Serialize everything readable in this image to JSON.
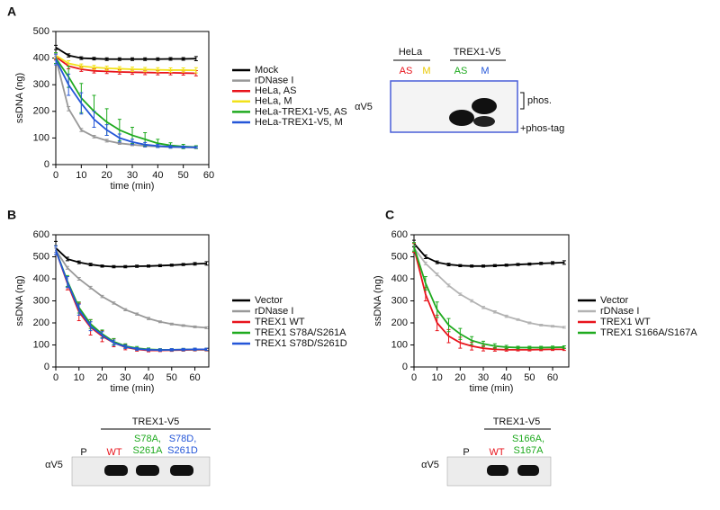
{
  "chart_data": [
    {
      "type": "line",
      "panel": "A",
      "xlabel": "time (min)",
      "ylabel": "ssDNA (ng)",
      "x": [
        0,
        5,
        10,
        15,
        20,
        25,
        30,
        35,
        40,
        45,
        50,
        55
      ],
      "xlim": [
        0,
        60
      ],
      "xticks": [
        0,
        10,
        20,
        30,
        40,
        50,
        60
      ],
      "ylim": [
        0,
        500
      ],
      "yticks": [
        0,
        100,
        200,
        300,
        400,
        500
      ],
      "legend": "right",
      "series": [
        {
          "name": "Mock",
          "color": "#000000",
          "values": [
            440,
            410,
            400,
            398,
            396,
            396,
            396,
            396,
            396,
            397,
            397,
            398
          ],
          "errors": [
            8,
            6,
            5,
            5,
            5,
            5,
            5,
            5,
            5,
            5,
            5,
            8
          ]
        },
        {
          "name": "rDNase I",
          "color": "#999999",
          "values": [
            400,
            210,
            130,
            105,
            90,
            80,
            75,
            70,
            68,
            66,
            65,
            64
          ],
          "errors": [
            8,
            8,
            6,
            5,
            5,
            4,
            4,
            4,
            4,
            4,
            4,
            4
          ]
        },
        {
          "name": "HeLa, AS",
          "color": "#e8141c",
          "values": [
            405,
            370,
            358,
            352,
            350,
            348,
            347,
            346,
            345,
            345,
            344,
            343
          ],
          "errors": [
            10,
            10,
            8,
            8,
            8,
            8,
            8,
            8,
            8,
            8,
            8,
            10
          ]
        },
        {
          "name": "HeLa, M",
          "color": "#f2e21b",
          "values": [
            410,
            380,
            370,
            365,
            362,
            360,
            358,
            357,
            356,
            355,
            355,
            354
          ],
          "errors": [
            10,
            10,
            8,
            8,
            8,
            8,
            8,
            8,
            8,
            8,
            8,
            10
          ]
        },
        {
          "name": "HeLa-TREX1-V5, AS",
          "color": "#1faa1f",
          "values": [
            400,
            330,
            250,
            200,
            160,
            130,
            110,
            95,
            80,
            72,
            68,
            66
          ],
          "errors": [
            20,
            40,
            55,
            60,
            50,
            40,
            30,
            25,
            15,
            10,
            8,
            5
          ]
        },
        {
          "name": "HeLa-TREX1-V5, M",
          "color": "#2456d8",
          "values": [
            395,
            300,
            230,
            170,
            130,
            100,
            85,
            75,
            70,
            67,
            66,
            65
          ],
          "errors": [
            20,
            40,
            40,
            30,
            20,
            15,
            10,
            8,
            6,
            5,
            4,
            3
          ]
        }
      ]
    },
    {
      "type": "line",
      "panel": "B",
      "xlabel": "time (min)",
      "ylabel": "ssDNA (ng)",
      "x": [
        0,
        5,
        10,
        15,
        20,
        25,
        30,
        35,
        40,
        45,
        50,
        55,
        60,
        65
      ],
      "xlim": [
        0,
        66
      ],
      "xticks": [
        0,
        10,
        20,
        30,
        40,
        50,
        60
      ],
      "ylim": [
        0,
        600
      ],
      "yticks": [
        0,
        100,
        200,
        300,
        400,
        500,
        600
      ],
      "legend": "right",
      "series": [
        {
          "name": "Vector",
          "color": "#000000",
          "values": [
            540,
            490,
            475,
            465,
            458,
            455,
            455,
            457,
            458,
            460,
            462,
            465,
            468,
            470
          ],
          "errors": [
            30,
            8,
            6,
            6,
            5,
            5,
            5,
            5,
            5,
            5,
            5,
            5,
            6,
            8
          ]
        },
        {
          "name": "rDNase I",
          "color": "#999999",
          "values": [
            530,
            450,
            400,
            360,
            320,
            290,
            260,
            240,
            220,
            205,
            195,
            188,
            182,
            178
          ],
          "errors": [
            10,
            6,
            6,
            6,
            5,
            5,
            5,
            5,
            5,
            4,
            4,
            4,
            4,
            4
          ]
        },
        {
          "name": "TREX1 WT",
          "color": "#e8141c",
          "values": [
            530,
            380,
            250,
            180,
            140,
            110,
            90,
            80,
            75,
            75,
            76,
            77,
            78,
            78
          ],
          "errors": [
            20,
            30,
            40,
            35,
            25,
            18,
            12,
            8,
            6,
            5,
            5,
            5,
            5,
            5
          ]
        },
        {
          "name": "TREX1 S78A/S261A",
          "color": "#1faa1f",
          "values": [
            530,
            390,
            270,
            195,
            150,
            115,
            95,
            85,
            80,
            78,
            78,
            79,
            80,
            80
          ],
          "errors": [
            20,
            25,
            25,
            20,
            18,
            14,
            10,
            8,
            6,
            5,
            5,
            5,
            5,
            5
          ]
        },
        {
          "name": "TREX1 S78D/S261D",
          "color": "#2456d8",
          "values": [
            530,
            385,
            260,
            185,
            145,
            110,
            92,
            82,
            78,
            77,
            78,
            79,
            80,
            80
          ],
          "errors": [
            20,
            25,
            25,
            20,
            15,
            12,
            8,
            6,
            5,
            5,
            5,
            5,
            5,
            5
          ]
        }
      ]
    },
    {
      "type": "line",
      "panel": "C",
      "xlabel": "time (min)",
      "ylabel": "ssDNA (ng)",
      "x": [
        0,
        5,
        10,
        15,
        20,
        25,
        30,
        35,
        40,
        45,
        50,
        55,
        60,
        65
      ],
      "xlim": [
        0,
        67
      ],
      "xticks": [
        0,
        10,
        20,
        30,
        40,
        50,
        60
      ],
      "ylim": [
        0,
        600
      ],
      "yticks": [
        0,
        100,
        200,
        300,
        400,
        500,
        600
      ],
      "legend": "right",
      "series": [
        {
          "name": "Vector",
          "color": "#000000",
          "values": [
            560,
            500,
            475,
            465,
            460,
            458,
            458,
            460,
            462,
            465,
            467,
            470,
            472,
            474
          ],
          "errors": [
            15,
            8,
            6,
            6,
            5,
            5,
            5,
            5,
            5,
            5,
            5,
            5,
            6,
            8
          ]
        },
        {
          "name": "rDNase I",
          "color": "#b3b3b3",
          "values": [
            540,
            470,
            420,
            370,
            330,
            300,
            270,
            250,
            230,
            215,
            200,
            190,
            185,
            180
          ],
          "errors": [
            10,
            6,
            6,
            6,
            5,
            5,
            5,
            5,
            5,
            4,
            4,
            4,
            4,
            4
          ]
        },
        {
          "name": "TREX1 WT",
          "color": "#e8141c",
          "values": [
            540,
            330,
            200,
            140,
            110,
            95,
            85,
            80,
            78,
            78,
            78,
            79,
            80,
            80
          ],
          "errors": [
            20,
            30,
            35,
            30,
            25,
            18,
            12,
            8,
            6,
            5,
            5,
            5,
            5,
            5
          ]
        },
        {
          "name": "TREX1 S166A/S167A",
          "color": "#1faa1f",
          "values": [
            545,
            380,
            260,
            190,
            150,
            120,
            105,
            95,
            90,
            88,
            88,
            88,
            89,
            90
          ],
          "errors": [
            20,
            30,
            35,
            30,
            25,
            18,
            12,
            10,
            8,
            6,
            6,
            6,
            6,
            6
          ]
        }
      ]
    }
  ],
  "blots": {
    "a": {
      "groups": [
        "HeLa",
        "TREX1-V5"
      ],
      "lanes": [
        "AS",
        "M",
        "AS",
        "M"
      ],
      "antibody": "αV5",
      "bracket": "phos.",
      "note": "+phos-tag"
    },
    "b": {
      "group": "TREX1-V5",
      "lanes": [
        [
          "P"
        ],
        [
          "WT"
        ],
        [
          "S78A,",
          "S261A"
        ],
        [
          "S78D,",
          "S261D"
        ]
      ],
      "antibody": "αV5"
    },
    "c": {
      "group": "TREX1-V5",
      "lanes": [
        [
          "P"
        ],
        [
          "WT"
        ],
        [
          "S166A,",
          "S167A"
        ]
      ],
      "antibody": "αV5"
    }
  }
}
